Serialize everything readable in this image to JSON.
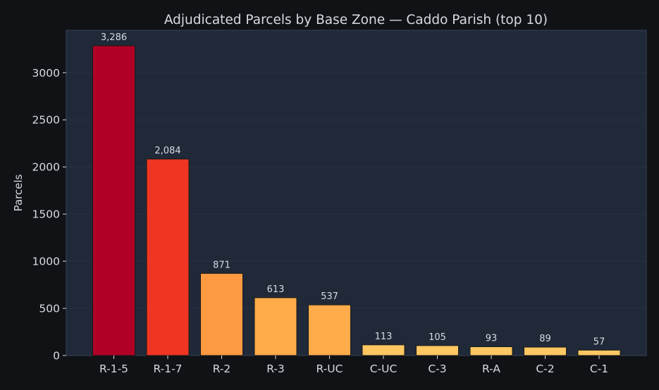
{
  "theme": {
    "page_bg": "#101216",
    "plot_bg": "#202938",
    "plot_border": "#3a4457",
    "grid": "#2a3446",
    "text": "#d6dbe3",
    "axis_text": "#d6dbe3",
    "bar_edge": "#1a1a1a",
    "bar_colors": [
      "#b10026",
      "#f03523",
      "#fd9a42",
      "#feab4a",
      "#feab4a",
      "#fec762",
      "#fec762",
      "#fec762",
      "#fec762",
      "#fec762"
    ]
  },
  "chart_data": {
    "type": "bar",
    "title": "Adjudicated Parcels by Base Zone — Caddo Parish (top 10)",
    "xlabel": "",
    "ylabel": "Parcels",
    "categories": [
      "R-1-5",
      "R-1-7",
      "R-2",
      "R-3",
      "R-UC",
      "C-UC",
      "C-3",
      "R-A",
      "C-2",
      "C-1"
    ],
    "values": [
      3286,
      2084,
      871,
      613,
      537,
      113,
      105,
      93,
      89,
      57
    ],
    "value_labels": [
      "3,286",
      "2,084",
      "871",
      "613",
      "537",
      "113",
      "105",
      "93",
      "89",
      "57"
    ],
    "ylim": [
      0,
      3450
    ],
    "yticks": [
      0,
      500,
      1000,
      1500,
      2000,
      2500,
      3000
    ],
    "grid": true,
    "legend": "none"
  }
}
